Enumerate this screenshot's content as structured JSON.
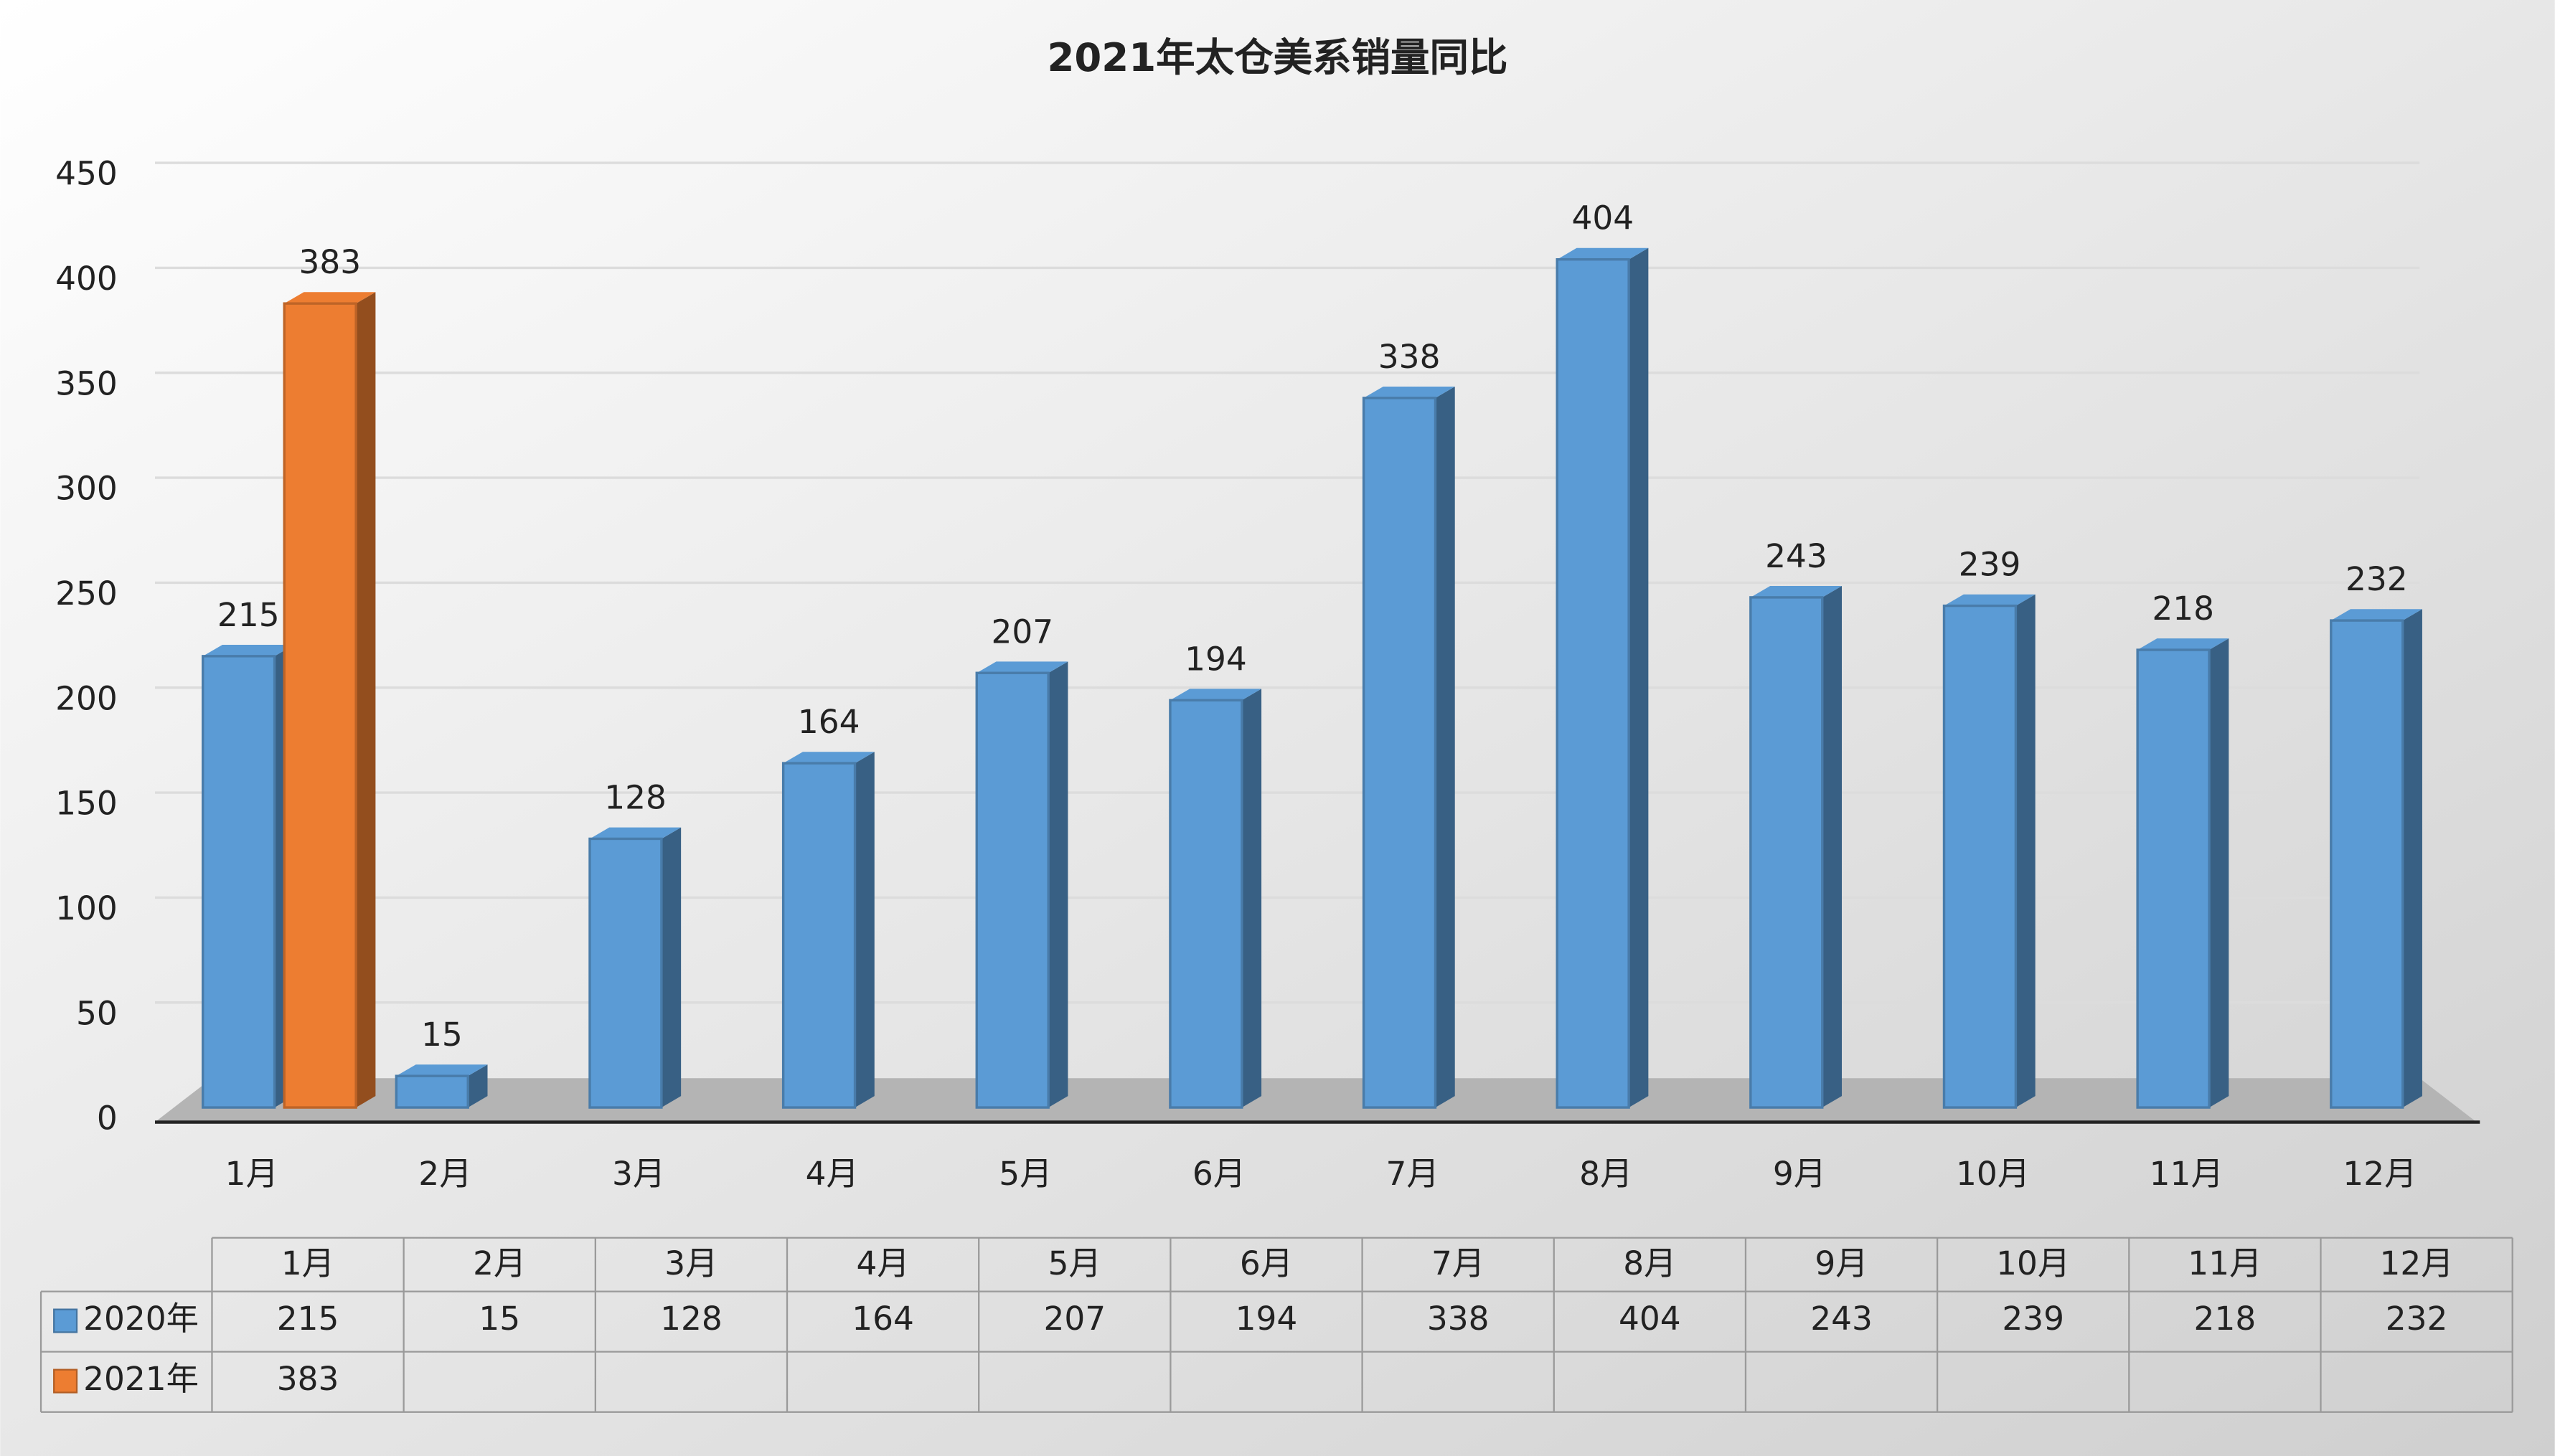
{
  "chart_data": {
    "type": "bar",
    "title": "2021年太仓美系销量同比",
    "categories": [
      "1月",
      "2月",
      "3月",
      "4月",
      "5月",
      "6月",
      "7月",
      "8月",
      "9月",
      "10月",
      "11月",
      "12月"
    ],
    "series": [
      {
        "name": "2020年",
        "color": "#5b9bd5",
        "values": [
          215,
          15,
          128,
          164,
          207,
          194,
          338,
          404,
          243,
          239,
          218,
          232
        ]
      },
      {
        "name": "2021年",
        "color": "#ed7d31",
        "values": [
          383,
          null,
          null,
          null,
          null,
          null,
          null,
          null,
          null,
          null,
          null,
          null
        ]
      }
    ],
    "ylim": [
      0,
      450
    ],
    "yticks": [
      0,
      50,
      100,
      150,
      200,
      250,
      300,
      350,
      400,
      450
    ],
    "grid": true
  }
}
